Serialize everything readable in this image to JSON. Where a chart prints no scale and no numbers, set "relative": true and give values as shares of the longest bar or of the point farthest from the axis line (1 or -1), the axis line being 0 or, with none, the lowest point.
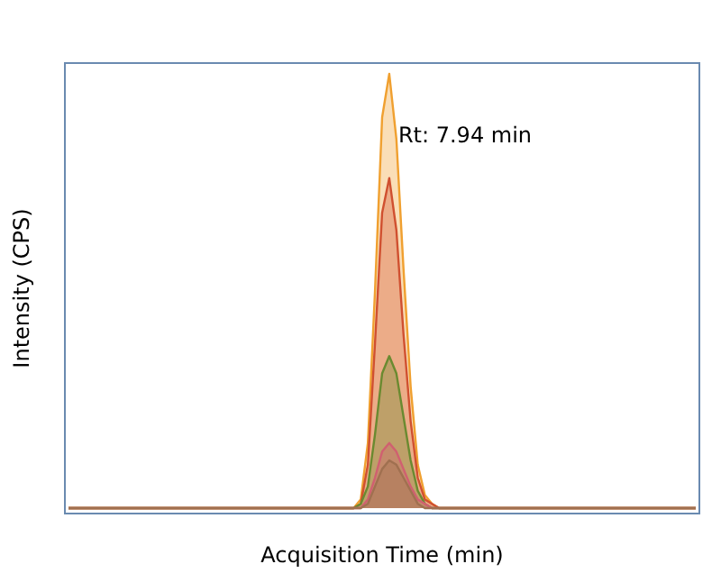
{
  "chart_data": {
    "type": "area",
    "relative": true,
    "xlabel": "Acquisition Time (min)",
    "ylabel": "Intensity (CPS)",
    "annotations": [
      "Rt: 7.94 min"
    ],
    "categories": [
      null,
      null,
      null,
      null,
      null,
      null,
      null,
      null,
      null,
      null,
      null,
      null,
      null,
      null,
      null,
      null,
      null,
      null,
      null,
      null,
      null,
      null,
      null,
      null,
      null,
      null,
      null,
      null,
      null,
      null,
      null,
      null,
      null,
      null,
      null,
      null,
      null,
      null,
      null,
      null,
      null,
      null,
      null,
      null,
      null,
      null,
      null,
      null,
      null,
      null,
      null,
      null,
      null,
      null,
      null,
      null,
      null,
      null,
      null,
      null,
      null,
      null,
      null,
      null,
      null,
      null,
      null,
      null,
      null,
      null,
      null,
      null,
      null,
      null,
      null,
      null,
      null,
      null,
      null,
      null,
      null,
      null,
      null,
      null,
      null,
      null,
      null,
      null,
      null
    ],
    "series": [
      {
        "color": "#f0a030",
        "values": [
          0,
          0,
          0,
          0,
          0,
          0,
          0,
          0,
          0,
          0,
          0,
          0,
          0,
          0,
          0,
          0,
          0,
          0,
          0,
          0,
          0,
          0,
          0,
          0,
          0,
          0,
          0,
          0,
          0,
          0,
          0,
          0,
          0,
          0,
          0,
          0,
          0,
          0,
          0,
          0,
          0,
          0.02,
          0.15,
          0.5,
          0.9,
          1,
          0.85,
          0.55,
          0.28,
          0.1,
          0.03,
          0.01,
          0,
          0,
          0,
          0,
          0,
          0,
          0,
          0,
          0,
          0,
          0,
          0,
          0,
          0,
          0,
          0,
          0,
          0,
          0,
          0,
          0,
          0,
          0,
          0,
          0,
          0,
          0,
          0,
          0,
          0,
          0,
          0,
          0,
          0,
          0,
          0,
          0
        ]
      },
      {
        "color": "#d05030",
        "values": [
          0,
          0,
          0,
          0,
          0,
          0,
          0,
          0,
          0,
          0,
          0,
          0,
          0,
          0,
          0,
          0,
          0,
          0,
          0,
          0,
          0,
          0,
          0,
          0,
          0,
          0,
          0,
          0,
          0,
          0,
          0,
          0,
          0,
          0,
          0,
          0,
          0,
          0,
          0,
          0,
          0,
          0.01,
          0.1,
          0.38,
          0.68,
          0.76,
          0.64,
          0.4,
          0.2,
          0.07,
          0.02,
          0.01,
          0,
          0,
          0,
          0,
          0,
          0,
          0,
          0,
          0,
          0,
          0,
          0,
          0,
          0,
          0,
          0,
          0,
          0,
          0,
          0,
          0,
          0,
          0,
          0,
          0,
          0,
          0,
          0,
          0,
          0,
          0,
          0,
          0,
          0,
          0,
          0,
          0
        ]
      },
      {
        "color": "#6a8a30",
        "values": [
          0,
          0,
          0,
          0,
          0,
          0,
          0,
          0,
          0,
          0,
          0,
          0,
          0,
          0,
          0,
          0,
          0,
          0,
          0,
          0,
          0,
          0,
          0,
          0,
          0,
          0,
          0,
          0,
          0,
          0,
          0,
          0,
          0,
          0,
          0,
          0,
          0,
          0,
          0,
          0,
          0,
          0.01,
          0.05,
          0.17,
          0.31,
          0.35,
          0.31,
          0.21,
          0.11,
          0.04,
          0.01,
          0,
          0,
          0,
          0,
          0,
          0,
          0,
          0,
          0,
          0,
          0,
          0,
          0,
          0,
          0,
          0,
          0,
          0,
          0,
          0,
          0,
          0,
          0,
          0,
          0,
          0,
          0,
          0,
          0,
          0,
          0,
          0,
          0,
          0,
          0,
          0,
          0,
          0
        ]
      },
      {
        "color": "#d06070",
        "values": [
          0,
          0,
          0,
          0,
          0,
          0,
          0,
          0,
          0,
          0,
          0,
          0,
          0,
          0,
          0,
          0,
          0,
          0,
          0,
          0,
          0,
          0,
          0,
          0,
          0,
          0,
          0,
          0,
          0,
          0,
          0,
          0,
          0,
          0,
          0,
          0,
          0,
          0,
          0,
          0,
          0,
          0,
          0.02,
          0.07,
          0.13,
          0.15,
          0.13,
          0.09,
          0.05,
          0.02,
          0.01,
          0,
          0,
          0,
          0,
          0,
          0,
          0,
          0,
          0,
          0,
          0,
          0,
          0,
          0,
          0,
          0,
          0,
          0,
          0,
          0,
          0,
          0,
          0,
          0,
          0,
          0,
          0,
          0,
          0,
          0,
          0,
          0,
          0,
          0,
          0,
          0,
          0,
          0
        ]
      },
      {
        "color": "#a07050",
        "values": [
          0,
          0,
          0,
          0,
          0,
          0,
          0,
          0,
          0,
          0,
          0,
          0,
          0,
          0,
          0,
          0,
          0,
          0,
          0,
          0,
          0,
          0,
          0,
          0,
          0,
          0,
          0,
          0,
          0,
          0,
          0,
          0,
          0,
          0,
          0,
          0,
          0,
          0,
          0,
          0,
          0,
          0,
          0.01,
          0.05,
          0.09,
          0.11,
          0.1,
          0.07,
          0.04,
          0.01,
          0,
          0,
          0,
          0,
          0,
          0,
          0,
          0,
          0,
          0,
          0,
          0,
          0,
          0,
          0,
          0,
          0,
          0,
          0,
          0,
          0,
          0,
          0,
          0,
          0,
          0,
          0,
          0,
          0,
          0,
          0,
          0,
          0,
          0,
          0,
          0,
          0,
          0,
          0
        ]
      }
    ]
  }
}
